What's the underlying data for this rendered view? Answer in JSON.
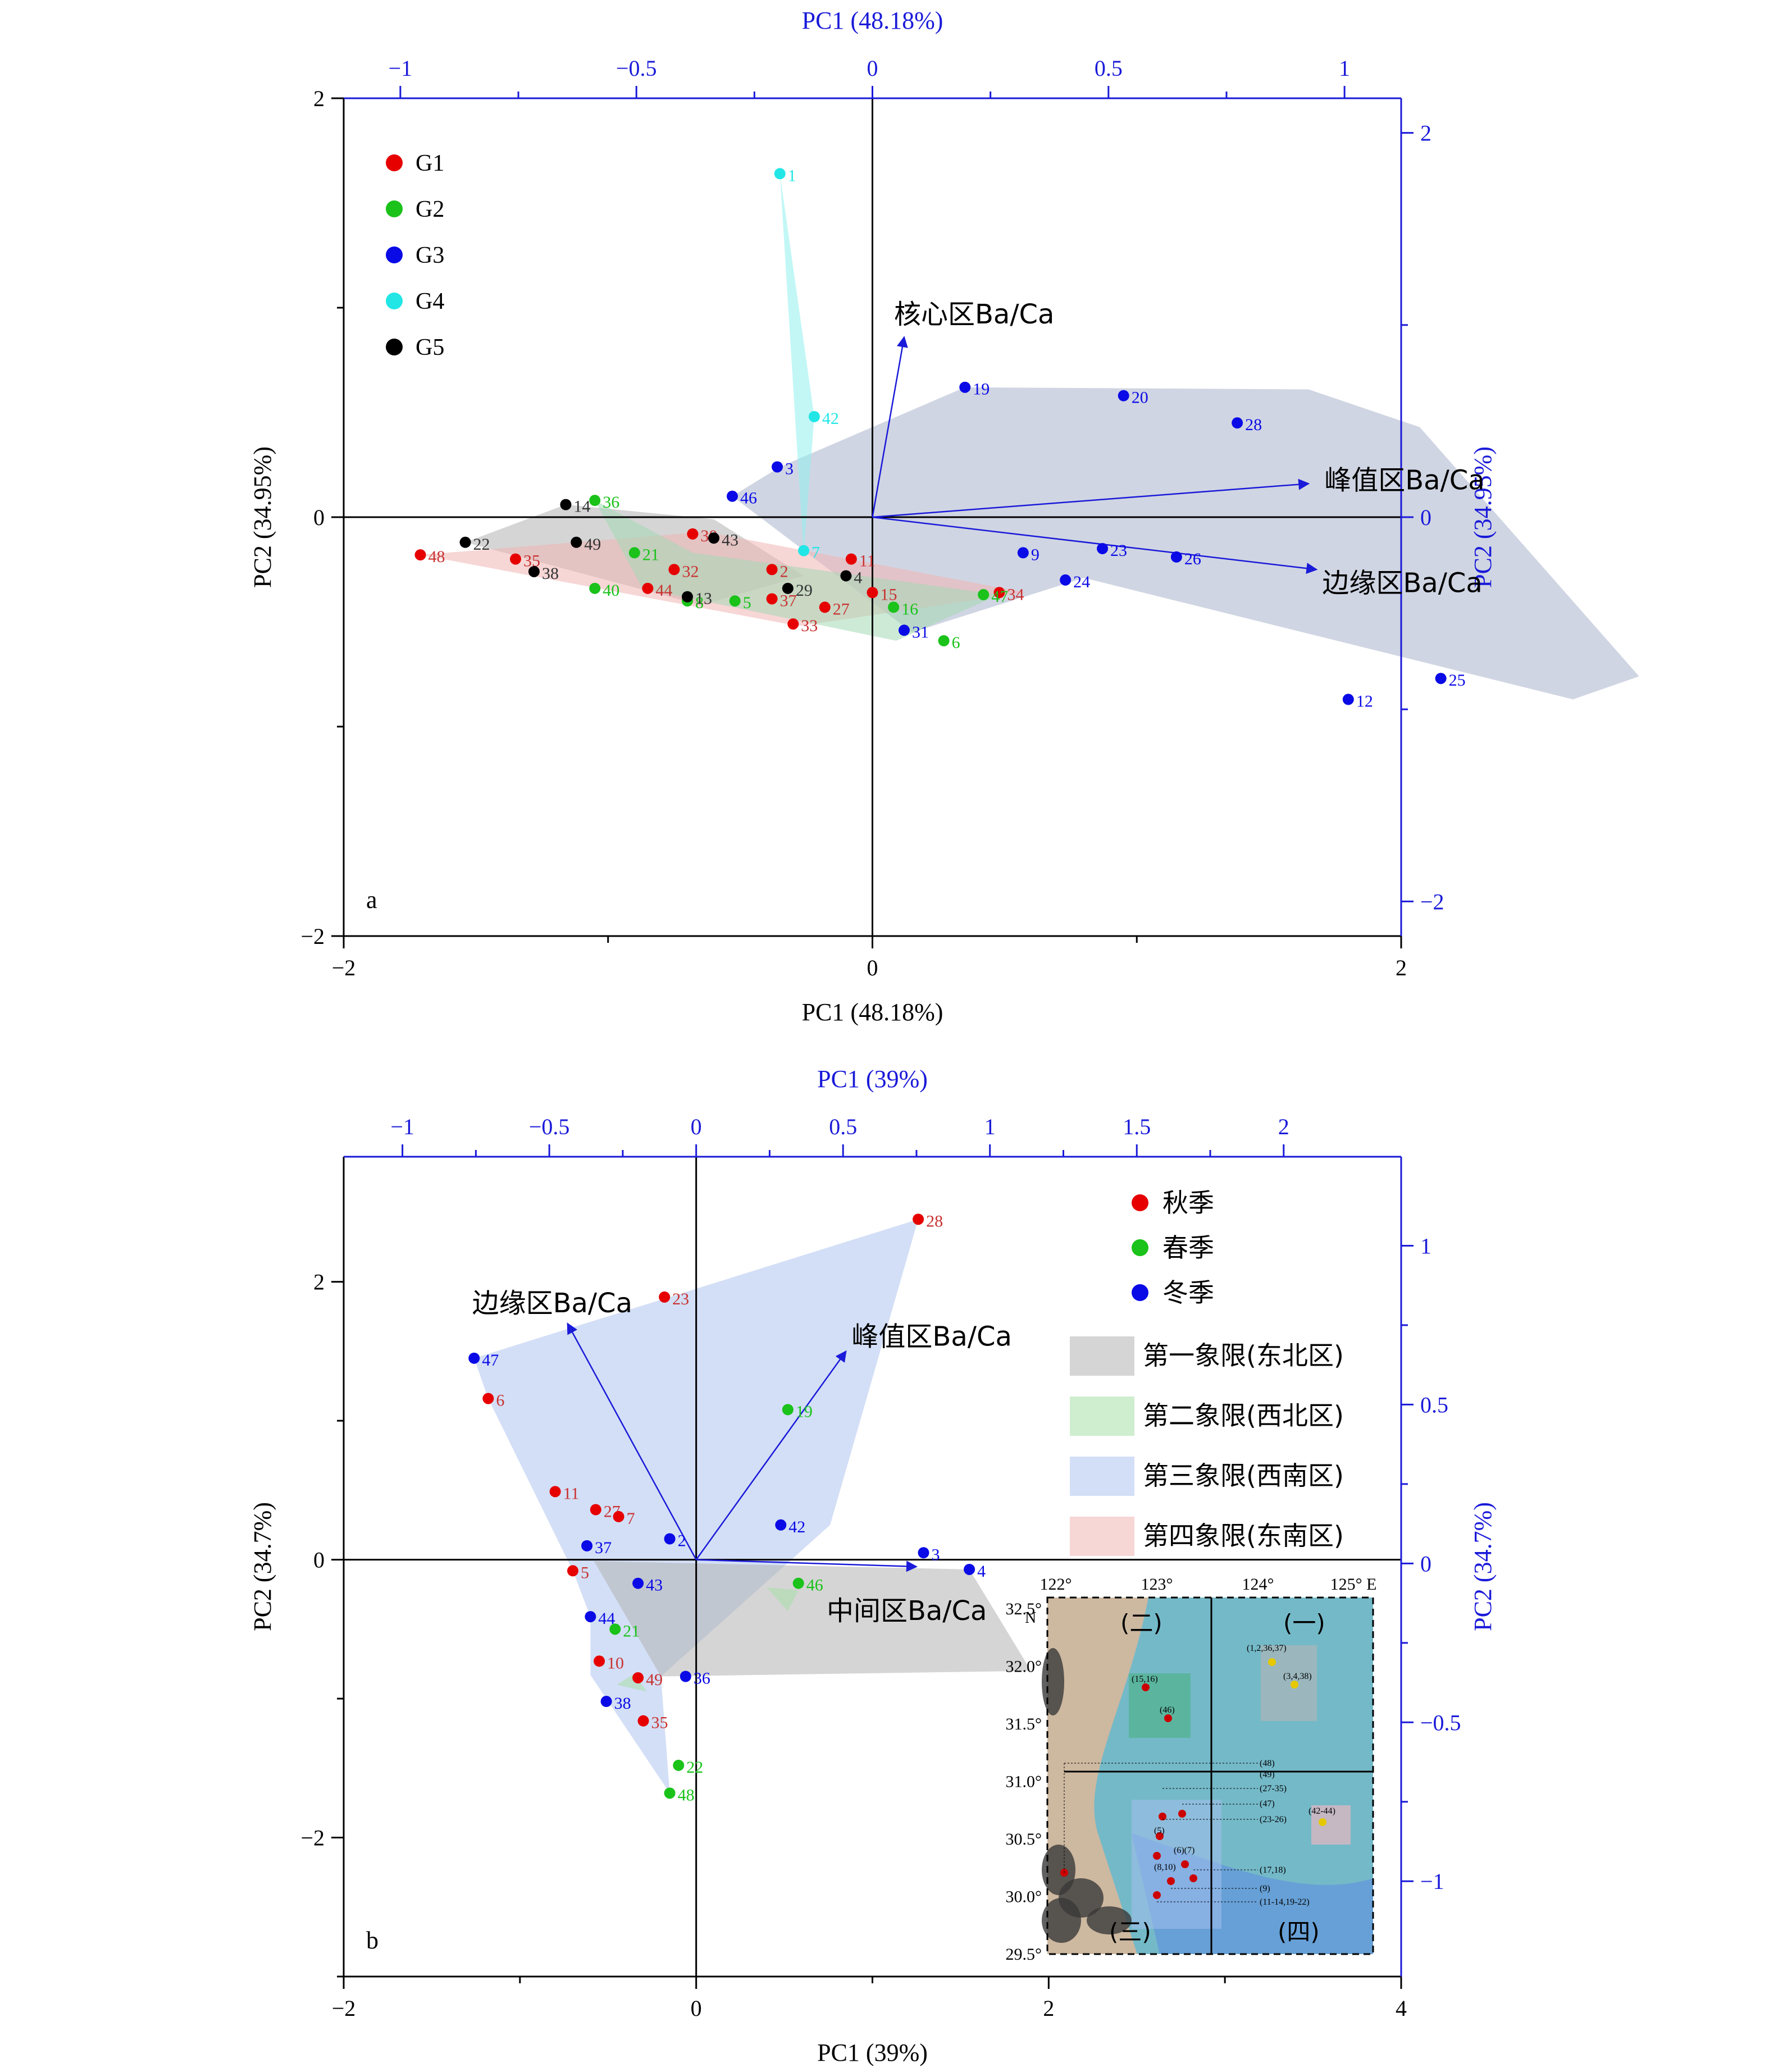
{
  "colors": {
    "red": "#e60000",
    "green": "#1ac21a",
    "blue": "#0a0ae6",
    "cyan": "#22e6e6",
    "black": "#000000",
    "axis2": "#1a1ad9",
    "hullGray": "#b3b3b3",
    "hullGreen": "#a8dfa8",
    "hullBlue": "#aec4ee",
    "hullPink": "#f1b4b4",
    "hullCyan": "#8ff0ef",
    "hullNavy": "#a9b2cc",
    "hullGreenA": "#a4d8b4"
  },
  "chart_data": [
    {
      "type": "scatter",
      "panel_label": "a",
      "xlabel": "PC1 (48.18%)",
      "ylabel": "PC2 (34.95%)",
      "top_label": "PC1 (48.18%)",
      "right_label": "PC2 (34.95%)",
      "xlim": [
        -2,
        2
      ],
      "ylim": [
        -2,
        2
      ],
      "xticks": [
        -2,
        0,
        2
      ],
      "yticks": [
        -2,
        0,
        2
      ],
      "top_lim": [
        -1.12,
        1.12
      ],
      "top_ticks": [
        -1.0,
        -0.5,
        0.0,
        0.5,
        1.0
      ],
      "right_lim": [
        -2.18,
        2.18
      ],
      "right_ticks": [
        -2,
        0,
        2
      ],
      "legend": [
        {
          "name": "G1",
          "color": "red"
        },
        {
          "name": "G2",
          "color": "green"
        },
        {
          "name": "G3",
          "color": "blue"
        },
        {
          "name": "G4",
          "color": "cyan"
        },
        {
          "name": "G5",
          "color": "black"
        }
      ],
      "hulls": [
        {
          "fill": "hullNavy",
          "pts": [
            [
              -0.53,
              0.1
            ],
            [
              -0.35,
              0.24
            ],
            [
              0.35,
              0.62
            ],
            [
              1.65,
              0.61
            ],
            [
              2.07,
              0.43
            ],
            [
              2.9,
              -0.76
            ],
            [
              2.65,
              -0.87
            ],
            [
              0.8,
              -0.29
            ],
            [
              0.15,
              -0.55
            ]
          ]
        },
        {
          "fill": "hullCyan",
          "pts": [
            [
              -0.35,
              1.64
            ],
            [
              -0.26,
              -0.18
            ],
            [
              -0.22,
              0.48
            ]
          ]
        },
        {
          "fill": "hullGray",
          "pts": [
            [
              -1.54,
              -0.12
            ],
            [
              -1.16,
              0.06
            ],
            [
              -0.6,
              -0.01
            ],
            [
              -0.26,
              -0.28
            ],
            [
              -0.65,
              -0.42
            ]
          ]
        },
        {
          "fill": "hullPink",
          "pts": [
            [
              -1.71,
              -0.18
            ],
            [
              -0.63,
              -0.07
            ],
            [
              0.58,
              -0.36
            ],
            [
              -0.28,
              -0.52
            ]
          ]
        },
        {
          "fill": "hullGreenA",
          "pts": [
            [
              -1.05,
              0.08
            ],
            [
              -0.68,
              -0.17
            ],
            [
              0.48,
              -0.37
            ],
            [
              0.09,
              -0.59
            ],
            [
              -0.87,
              -0.34
            ]
          ]
        }
      ],
      "arrows": [
        {
          "label": "核心区Ba/Ca",
          "x": 0.12,
          "y": 0.86
        },
        {
          "label": "峰值区Ba/Ca",
          "x": 1.65,
          "y": 0.16
        },
        {
          "label": "边缘区Ba/Ca",
          "x": 1.68,
          "y": -0.25
        }
      ],
      "points": [
        {
          "id": "1",
          "x": -0.35,
          "y": 1.64,
          "c": "cyan"
        },
        {
          "id": "42",
          "x": -0.22,
          "y": 0.48,
          "c": "cyan"
        },
        {
          "id": "7",
          "x": -0.26,
          "y": -0.16,
          "c": "cyan"
        },
        {
          "id": "19",
          "x": 0.35,
          "y": 0.62,
          "c": "blue"
        },
        {
          "id": "20",
          "x": 0.95,
          "y": 0.58,
          "c": "blue"
        },
        {
          "id": "28",
          "x": 1.38,
          "y": 0.45,
          "c": "blue"
        },
        {
          "id": "3",
          "x": -0.36,
          "y": 0.24,
          "c": "blue"
        },
        {
          "id": "46",
          "x": -0.53,
          "y": 0.1,
          "c": "blue"
        },
        {
          "id": "9",
          "x": 0.57,
          "y": -0.17,
          "c": "blue"
        },
        {
          "id": "23",
          "x": 0.87,
          "y": -0.15,
          "c": "blue"
        },
        {
          "id": "26",
          "x": 1.15,
          "y": -0.19,
          "c": "blue"
        },
        {
          "id": "24",
          "x": 0.73,
          "y": -0.3,
          "c": "blue"
        },
        {
          "id": "31",
          "x": 0.12,
          "y": -0.54,
          "c": "blue"
        },
        {
          "id": "12",
          "x": 1.8,
          "y": -0.87,
          "c": "blue"
        },
        {
          "id": "25",
          "x": 2.15,
          "y": -0.77,
          "c": "blue"
        },
        {
          "id": "48",
          "x": -1.71,
          "y": -0.18,
          "c": "red"
        },
        {
          "id": "35",
          "x": -1.35,
          "y": -0.2,
          "c": "red"
        },
        {
          "id": "30",
          "x": -0.68,
          "y": -0.08,
          "c": "red"
        },
        {
          "id": "11",
          "x": -0.08,
          "y": -0.2,
          "c": "red"
        },
        {
          "id": "2",
          "x": -0.38,
          "y": -0.25,
          "c": "red"
        },
        {
          "id": "15",
          "x": 0.0,
          "y": -0.36,
          "c": "red"
        },
        {
          "id": "34",
          "x": 0.48,
          "y": -0.36,
          "c": "red"
        },
        {
          "id": "33",
          "x": -0.3,
          "y": -0.51,
          "c": "red"
        },
        {
          "id": "44",
          "x": -0.85,
          "y": -0.34,
          "c": "red"
        },
        {
          "id": "37",
          "x": -0.38,
          "y": -0.39,
          "c": "red"
        },
        {
          "id": "27",
          "x": -0.18,
          "y": -0.43,
          "c": "red"
        },
        {
          "id": "32",
          "x": -0.75,
          "y": -0.25,
          "c": "red"
        },
        {
          "id": "36",
          "x": -1.05,
          "y": 0.08,
          "c": "green"
        },
        {
          "id": "21",
          "x": -0.9,
          "y": -0.17,
          "c": "green"
        },
        {
          "id": "40",
          "x": -1.05,
          "y": -0.34,
          "c": "green"
        },
        {
          "id": "8",
          "x": -0.7,
          "y": -0.4,
          "c": "green"
        },
        {
          "id": "5",
          "x": -0.52,
          "y": -0.4,
          "c": "green"
        },
        {
          "id": "16",
          "x": 0.08,
          "y": -0.43,
          "c": "green"
        },
        {
          "id": "6",
          "x": 0.27,
          "y": -0.59,
          "c": "green"
        },
        {
          "id": "47",
          "x": 0.42,
          "y": -0.37,
          "c": "green"
        },
        {
          "id": "14",
          "x": -1.16,
          "y": 0.06,
          "c": "black"
        },
        {
          "id": "22",
          "x": -1.54,
          "y": -0.12,
          "c": "black"
        },
        {
          "id": "49",
          "x": -1.12,
          "y": -0.12,
          "c": "black"
        },
        {
          "id": "43",
          "x": -0.6,
          "y": -0.1,
          "c": "black"
        },
        {
          "id": "38",
          "x": -1.28,
          "y": -0.26,
          "c": "black"
        },
        {
          "id": "13",
          "x": -0.7,
          "y": -0.38,
          "c": "black"
        },
        {
          "id": "29",
          "x": -0.32,
          "y": -0.34,
          "c": "black"
        },
        {
          "id": "4",
          "x": -0.1,
          "y": -0.28,
          "c": "black"
        }
      ]
    },
    {
      "type": "scatter",
      "panel_label": "b",
      "xlabel": "PC1 (39%)",
      "ylabel": "PC2 (34.7%)",
      "top_label": "PC1 (39%)",
      "right_label": "PC2 (34.7%)",
      "xlim": [
        -2,
        4
      ],
      "ylim": [
        -3,
        2.9
      ],
      "xticks": [
        -2,
        0,
        2,
        4
      ],
      "yticks": [
        -2,
        0,
        2
      ],
      "top_lim": [
        -1.2,
        2.4
      ],
      "top_ticks": [
        -1.0,
        -0.5,
        0.0,
        0.5,
        1.0,
        1.5,
        2.0
      ],
      "right_lim": [
        -1.3,
        1.28
      ],
      "right_ticks": [
        -1.0,
        -0.5,
        0.0,
        0.5,
        1.0
      ],
      "legend": [
        {
          "name": "秋季",
          "color": "red"
        },
        {
          "name": "春季",
          "color": "green"
        },
        {
          "name": "冬季",
          "color": "blue"
        }
      ],
      "region_legend": [
        {
          "name": "第一象限(东北区)",
          "fill": "hullGray"
        },
        {
          "name": "第二象限(西北区)",
          "fill": "hullGreen"
        },
        {
          "name": "第三象限(西南区)",
          "fill": "hullBlue"
        },
        {
          "name": "第四象限(东南区)",
          "fill": "hullPink"
        }
      ],
      "hulls": [
        {
          "fill": "hullBlue",
          "pts": [
            [
              -1.26,
              1.45
            ],
            [
              1.26,
              2.45
            ],
            [
              0.76,
              0.25
            ],
            [
              -0.2,
              -0.84
            ],
            [
              -0.15,
              -1.68
            ],
            [
              -0.6,
              -0.83
            ],
            [
              -0.6,
              -0.41
            ],
            [
              -0.7,
              -0.08
            ],
            [
              -1.18,
              1.16
            ]
          ]
        },
        {
          "fill": "hullGray",
          "pts": [
            [
              -0.58,
              -0.01
            ],
            [
              1.55,
              -0.07
            ],
            [
              1.9,
              -0.8
            ],
            [
              -0.2,
              -0.84
            ]
          ]
        },
        {
          "fill": "hullGreen",
          "pts": [
            [
              0.4,
              -0.2
            ],
            [
              0.58,
              -0.22
            ],
            [
              0.52,
              -0.37
            ]
          ]
        },
        {
          "fill": "hullGreen",
          "pts": [
            [
              -0.35,
              -0.82
            ],
            [
              -0.28,
              -0.95
            ],
            [
              -0.45,
              -0.9
            ]
          ]
        }
      ],
      "arrows": [
        {
          "label": "边缘区Ba/Ca",
          "x": -0.73,
          "y": 1.7
        },
        {
          "label": "峰值区Ba/Ca",
          "x": 0.85,
          "y": 1.5
        },
        {
          "label": "中间区Ba/Ca",
          "x": 1.25,
          "y": -0.05
        }
      ],
      "points": [
        {
          "id": "28",
          "x": 1.26,
          "y": 2.45,
          "c": "red"
        },
        {
          "id": "23",
          "x": -0.18,
          "y": 1.89,
          "c": "red"
        },
        {
          "id": "6",
          "x": -1.18,
          "y": 1.16,
          "c": "red"
        },
        {
          "id": "11",
          "x": -0.8,
          "y": 0.49,
          "c": "red"
        },
        {
          "id": "27",
          "x": -0.57,
          "y": 0.36,
          "c": "red"
        },
        {
          "id": "7",
          "x": -0.44,
          "y": 0.31,
          "c": "red"
        },
        {
          "id": "5",
          "x": -0.7,
          "y": -0.08,
          "c": "red"
        },
        {
          "id": "10",
          "x": -0.55,
          "y": -0.73,
          "c": "red"
        },
        {
          "id": "49",
          "x": -0.33,
          "y": -0.85,
          "c": "red"
        },
        {
          "id": "35",
          "x": -0.3,
          "y": -1.16,
          "c": "red"
        },
        {
          "id": "19",
          "x": 0.52,
          "y": 1.08,
          "c": "green"
        },
        {
          "id": "46",
          "x": 0.58,
          "y": -0.17,
          "c": "green"
        },
        {
          "id": "21",
          "x": -0.46,
          "y": -0.5,
          "c": "green"
        },
        {
          "id": "22",
          "x": -0.1,
          "y": -1.48,
          "c": "green"
        },
        {
          "id": "48",
          "x": -0.15,
          "y": -1.68,
          "c": "green"
        },
        {
          "id": "47",
          "x": -1.26,
          "y": 1.45,
          "c": "blue"
        },
        {
          "id": "2",
          "x": -0.15,
          "y": 0.15,
          "c": "blue"
        },
        {
          "id": "37",
          "x": -0.62,
          "y": 0.1,
          "c": "blue"
        },
        {
          "id": "42",
          "x": 0.48,
          "y": 0.25,
          "c": "blue"
        },
        {
          "id": "3",
          "x": 1.29,
          "y": 0.05,
          "c": "blue"
        },
        {
          "id": "4",
          "x": 1.55,
          "y": -0.07,
          "c": "blue"
        },
        {
          "id": "43",
          "x": -0.33,
          "y": -0.17,
          "c": "blue"
        },
        {
          "id": "44",
          "x": -0.6,
          "y": -0.41,
          "c": "blue"
        },
        {
          "id": "36",
          "x": -0.06,
          "y": -0.84,
          "c": "blue"
        },
        {
          "id": "38",
          "x": -0.51,
          "y": -1.02,
          "c": "blue"
        }
      ],
      "inset": {
        "lon_ticks": [
          "122°",
          "123°",
          "124°",
          "125° E"
        ],
        "lat_ticks": [
          "32.5°",
          "32.0°",
          "31.5°",
          "31.0°",
          "30.5°",
          "30.0°",
          "29.5°"
        ],
        "north": "N",
        "quadrants": [
          "(一)",
          "(二)",
          "(三)",
          "(四)"
        ],
        "site_labels": [
          "(1,2,36,37)",
          "(3,4,38)",
          "(15,16)",
          "(46)",
          "(48)",
          "(49)",
          "(27-35)",
          "(47)",
          "(23-26)",
          "(42-44)",
          "(5)",
          "(6)(7)",
          "(8,10)",
          "(17,18)",
          "(9)",
          "(11-14,19-22)"
        ]
      }
    }
  ]
}
